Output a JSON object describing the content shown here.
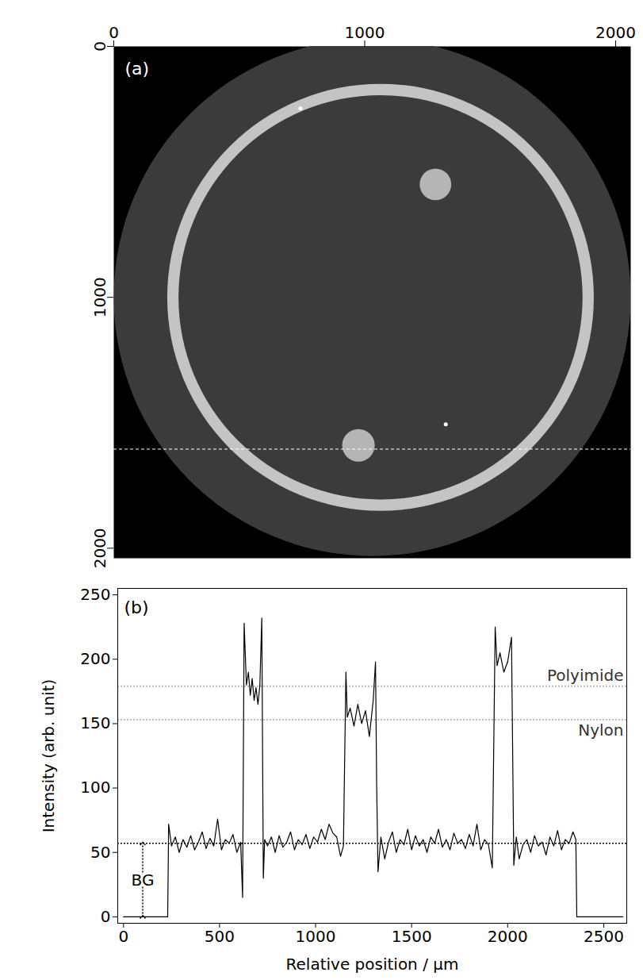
{
  "chart_data": [
    {
      "type": "image",
      "panel_label": "(a)",
      "background": "#000000",
      "xlim": [
        0,
        2060
      ],
      "ylim": [
        2040,
        0
      ],
      "xticks": [
        0,
        1000,
        2000
      ],
      "yticks": [
        0,
        1000,
        2000
      ],
      "circles": [
        {
          "x": 1030,
          "y": 1000,
          "r": 1030,
          "color": "#3b3b3b"
        },
        {
          "x": 1063,
          "y": 1000,
          "r": 850,
          "color": "#c4c4c4"
        },
        {
          "x": 1063,
          "y": 1000,
          "r": 805,
          "color": "#3b3b3b"
        },
        {
          "x": 1282,
          "y": 550,
          "r": 63,
          "color": "#b5b5b5"
        },
        {
          "x": 975,
          "y": 1590,
          "r": 65,
          "color": "#b5b5b5"
        },
        {
          "x": 744,
          "y": 247,
          "r": 8,
          "color": "#ffffff"
        },
        {
          "x": 1323,
          "y": 1506,
          "r": 8,
          "color": "#ffffff"
        }
      ],
      "profile_line": {
        "y": 1605,
        "color": "#ffffff",
        "line_style": "dashed"
      }
    },
    {
      "type": "line",
      "panel_label": "(b)",
      "color": "#000000",
      "xlabel": "Relative position / µm",
      "ylabel": "Intensity (arb. unit)",
      "xlim": [
        -30,
        2620
      ],
      "ylim": [
        -5,
        255
      ],
      "xticks": [
        0,
        500,
        1000,
        1500,
        2000,
        2500
      ],
      "yticks": [
        0,
        50,
        100,
        150,
        200,
        250
      ],
      "x": [
        0,
        230,
        235,
        250,
        270,
        290,
        310,
        330,
        350,
        370,
        390,
        410,
        430,
        450,
        470,
        490,
        510,
        530,
        550,
        570,
        590,
        610,
        620,
        628,
        640,
        650,
        660,
        670,
        680,
        690,
        700,
        710,
        720,
        728,
        735,
        750,
        770,
        790,
        810,
        830,
        850,
        870,
        890,
        910,
        930,
        950,
        970,
        990,
        1010,
        1030,
        1050,
        1070,
        1090,
        1110,
        1130,
        1145,
        1158,
        1165,
        1180,
        1200,
        1220,
        1240,
        1260,
        1280,
        1300,
        1312,
        1318,
        1325,
        1340,
        1360,
        1380,
        1400,
        1420,
        1440,
        1460,
        1480,
        1500,
        1520,
        1540,
        1560,
        1580,
        1600,
        1620,
        1640,
        1660,
        1680,
        1700,
        1720,
        1740,
        1760,
        1780,
        1800,
        1820,
        1840,
        1860,
        1880,
        1900,
        1920,
        1935,
        1945,
        1960,
        1980,
        2000,
        2020,
        2032,
        2045,
        2060,
        2080,
        2100,
        2120,
        2140,
        2160,
        2180,
        2200,
        2220,
        2240,
        2260,
        2280,
        2300,
        2320,
        2340,
        2355,
        2360,
        2400,
        2500,
        2600
      ],
      "values": [
        0,
        0,
        72,
        55,
        62,
        50,
        60,
        54,
        63,
        52,
        58,
        66,
        53,
        61,
        55,
        76,
        52,
        60,
        57,
        64,
        50,
        58,
        15,
        228,
        180,
        190,
        172,
        185,
        168,
        178,
        165,
        180,
        232,
        30,
        60,
        55,
        62,
        50,
        63,
        54,
        58,
        66,
        52,
        60,
        56,
        64,
        53,
        62,
        58,
        68,
        60,
        72,
        65,
        62,
        47,
        55,
        190,
        155,
        162,
        148,
        165,
        150,
        160,
        140,
        168,
        198,
        103,
        35,
        62,
        45,
        58,
        66,
        50,
        60,
        56,
        68,
        52,
        63,
        55,
        60,
        50,
        62,
        57,
        68,
        54,
        60,
        52,
        65,
        57,
        60,
        53,
        64,
        55,
        72,
        52,
        60,
        56,
        38,
        225,
        195,
        205,
        190,
        198,
        217,
        40,
        62,
        45,
        56,
        60,
        50,
        63,
        55,
        58,
        48,
        62,
        55,
        67,
        52,
        60,
        57,
        66,
        60,
        0,
        0,
        0,
        0
      ],
      "reference_lines": [
        {
          "value": 179,
          "label": "Polyimide",
          "color": "#bbbbbb",
          "line_style": "dotted"
        },
        {
          "value": 153,
          "label": "Nylon",
          "color": "#bbbbbb",
          "line_style": "dotted"
        },
        {
          "value": 57,
          "label": "BG",
          "color": "#000000",
          "line_style": "dotted",
          "x": 100,
          "from": 0
        }
      ]
    }
  ]
}
